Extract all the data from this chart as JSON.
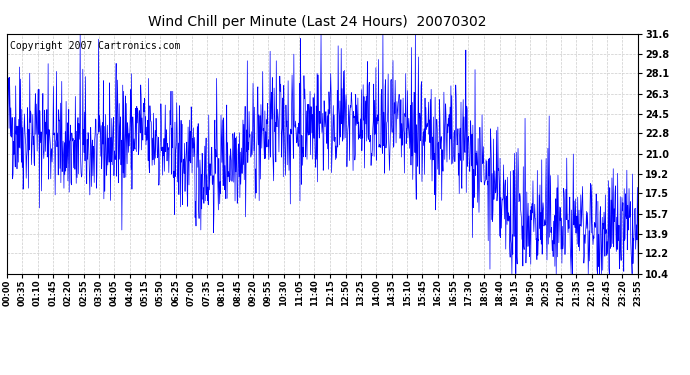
{
  "title": "Wind Chill per Minute (Last 24 Hours)  20070302",
  "copyright": "Copyright 2007 Cartronics.com",
  "yticks": [
    10.4,
    12.2,
    13.9,
    15.7,
    17.5,
    19.2,
    21.0,
    22.8,
    24.5,
    26.3,
    28.1,
    29.8,
    31.6
  ],
  "ymin": 10.4,
  "ymax": 31.6,
  "line_color": "#0000FF",
  "bg_color": "#FFFFFF",
  "grid_color": "#CCCCCC",
  "title_fontsize": 10,
  "copyright_fontsize": 7,
  "x_tick_labels": [
    "00:00",
    "00:35",
    "01:10",
    "01:45",
    "02:20",
    "02:55",
    "03:30",
    "04:05",
    "04:40",
    "05:15",
    "05:50",
    "06:25",
    "07:00",
    "07:35",
    "08:10",
    "08:45",
    "09:20",
    "09:55",
    "10:30",
    "11:05",
    "11:40",
    "12:15",
    "12:50",
    "13:25",
    "14:00",
    "14:35",
    "15:10",
    "15:45",
    "16:20",
    "16:55",
    "17:30",
    "18:05",
    "18:40",
    "19:15",
    "19:50",
    "20:25",
    "21:00",
    "21:35",
    "22:10",
    "22:45",
    "23:20",
    "23:55"
  ],
  "num_points": 1440
}
